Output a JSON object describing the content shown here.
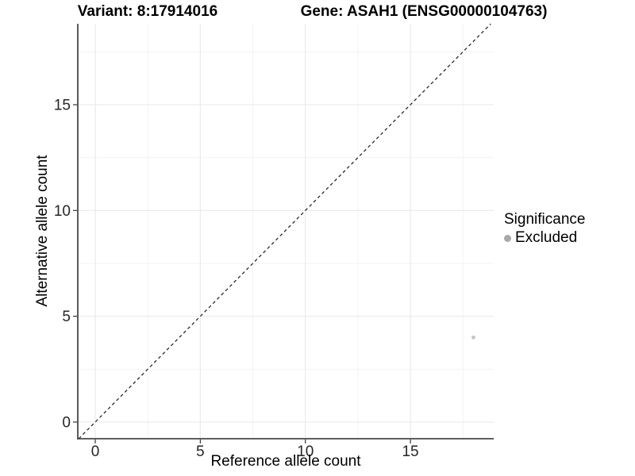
{
  "chart_data": {
    "type": "scatter",
    "title_left": "Variant: 8:17914016",
    "title_right": "Gene: ASAH1 (ENSG00000104763)",
    "xlabel": "Reference allele count",
    "ylabel": "Alternative allele count",
    "x_ticks": [
      0,
      5,
      10,
      15
    ],
    "y_ticks": [
      0,
      5,
      10,
      15
    ],
    "x_minor_ticks": [
      2.5,
      7.5,
      12.5,
      17.5
    ],
    "y_minor_ticks": [
      2.5,
      7.5,
      12.5,
      17.5
    ],
    "xlim": [
      -0.83,
      18.96
    ],
    "ylim": [
      -0.79,
      18.82
    ],
    "grid": "major and minor, light grey on white",
    "reference_line": {
      "kind": "identity y=x",
      "style": "dashed",
      "color": "#1a1a1a"
    },
    "series": [
      {
        "name": "Excluded",
        "color": "#c4c4c4",
        "points": [
          {
            "x": 18,
            "y": 4
          }
        ]
      }
    ],
    "legend": {
      "title": "Significance",
      "position": "right",
      "entries": [
        {
          "label": "Excluded",
          "color": "#a9a9a9"
        }
      ]
    },
    "colors": {
      "grid_major": "#e9e9e9",
      "grid_minor": "#f3f3f3",
      "axis_line": "#474747",
      "tick_mark": "#333333",
      "tick_text": "#262626"
    }
  }
}
